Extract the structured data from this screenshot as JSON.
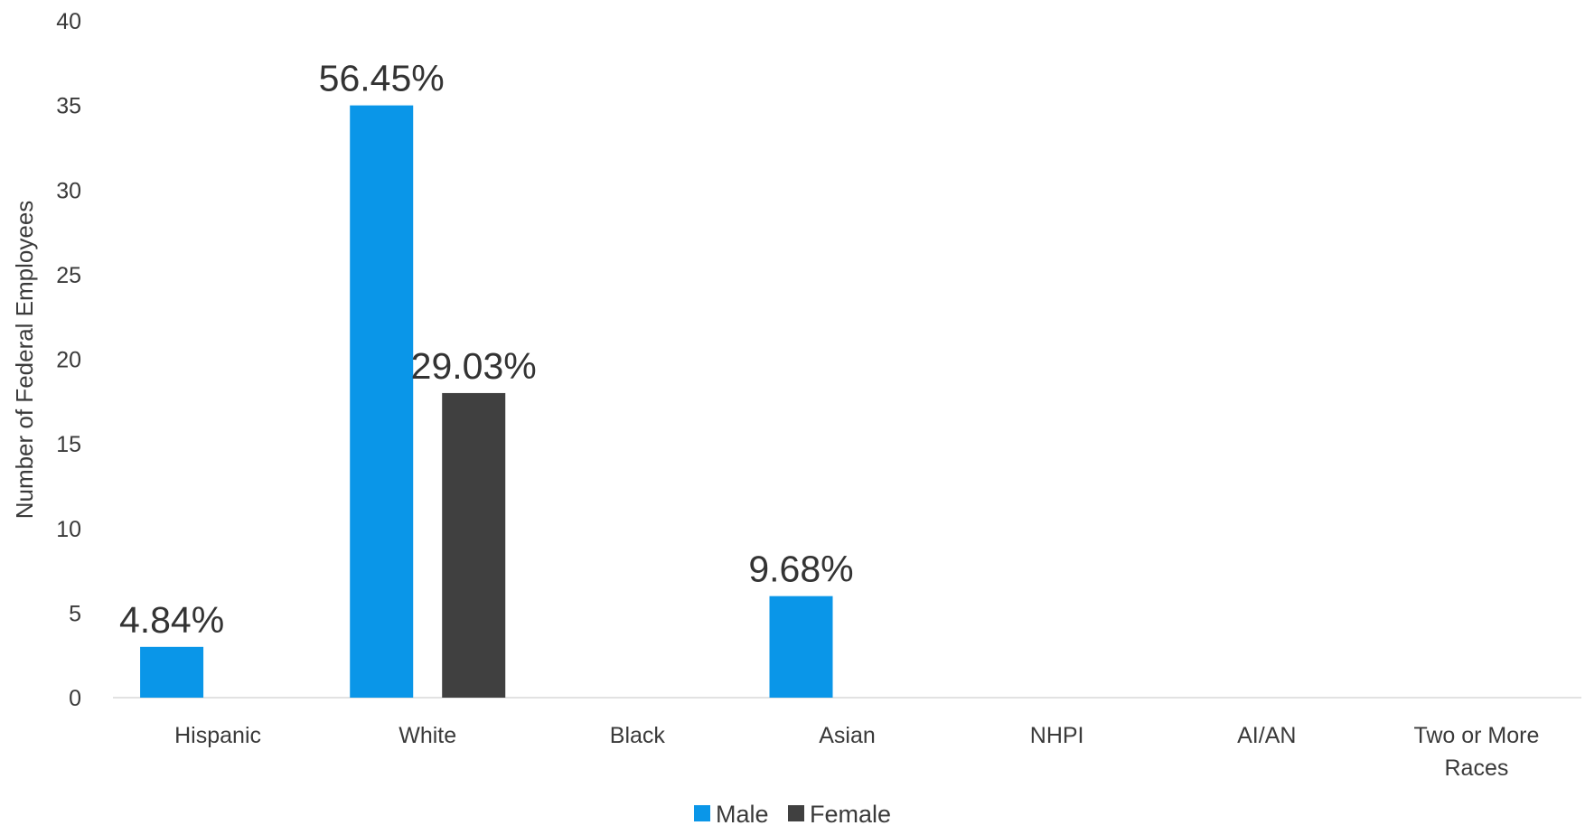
{
  "chart_data": {
    "type": "bar",
    "categories": [
      "Hispanic",
      "White",
      "Black",
      "Asian",
      "NHPI",
      "AI/AN",
      "Two or More Races"
    ],
    "series": [
      {
        "name": "Male",
        "color": "#0a96e8",
        "values": [
          3,
          35,
          0,
          6,
          0,
          0,
          0
        ],
        "data_labels": [
          "4.84%",
          "56.45%",
          "",
          "9.68%",
          "",
          "",
          ""
        ]
      },
      {
        "name": "Female",
        "color": "#404040",
        "values": [
          0,
          18,
          0,
          0,
          0,
          0,
          0
        ],
        "data_labels": [
          "",
          "29.03%",
          "",
          "",
          "",
          "",
          ""
        ]
      }
    ],
    "title": "",
    "xlabel": "",
    "ylabel": "Number of Federal Employees",
    "ylim": [
      0,
      40
    ],
    "yticks": [
      0,
      5,
      10,
      15,
      20,
      25,
      30,
      35,
      40
    ],
    "grid": false,
    "legend": "bottom-center"
  }
}
